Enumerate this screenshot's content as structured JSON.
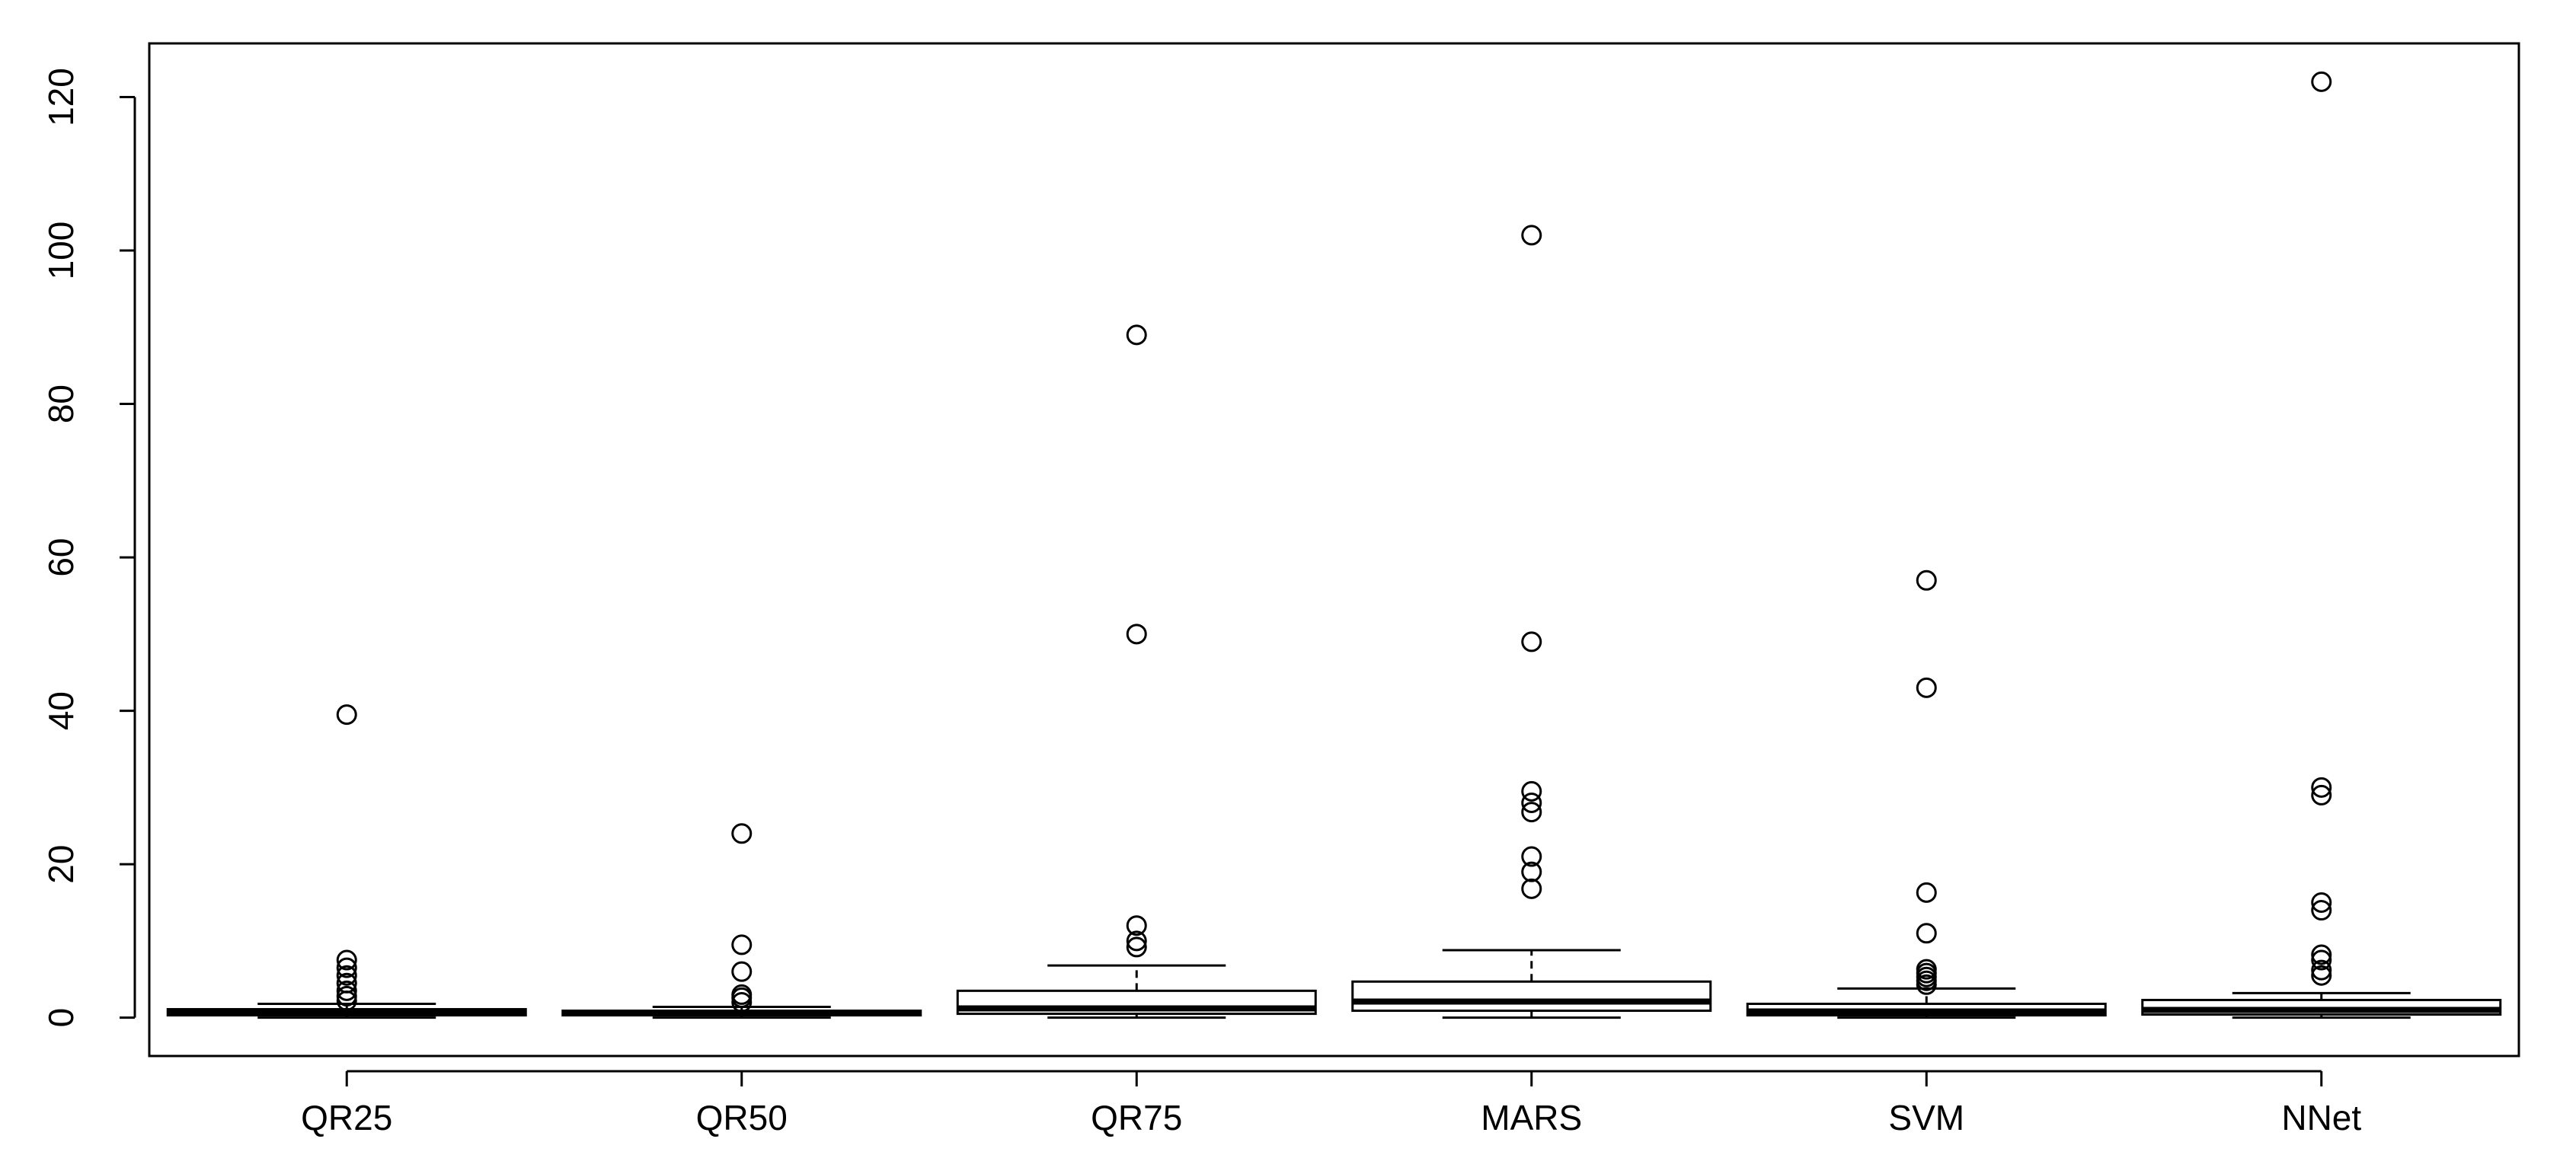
{
  "chart_data": {
    "type": "boxplot",
    "title": "",
    "xlabel": "",
    "ylabel": "",
    "ylim": [
      -5,
      127
    ],
    "y_ticks": [
      0,
      20,
      40,
      60,
      80,
      100,
      120
    ],
    "grid": false,
    "legend": "none",
    "colors": {
      "stroke": "#000000",
      "box_fill": "#ffffff",
      "background": "#ffffff"
    },
    "categories": [
      "QR25",
      "QR50",
      "QR75",
      "MARS",
      "SVM",
      "NNet"
    ],
    "series": [
      {
        "category": "QR25",
        "whisker_low": 0.0,
        "q1": 0.3,
        "median": 0.7,
        "q3": 1.1,
        "whisker_high": 1.8,
        "outliers": [
          2.2,
          2.8,
          3.5,
          4.5,
          5.5,
          6.5,
          7.5,
          39.5
        ]
      },
      {
        "category": "QR50",
        "whisker_low": 0.0,
        "q1": 0.3,
        "median": 0.6,
        "q3": 0.9,
        "whisker_high": 1.4,
        "outliers": [
          2.0,
          2.6,
          3.0,
          6.0,
          9.5,
          24.0
        ]
      },
      {
        "category": "QR75",
        "whisker_low": 0.0,
        "q1": 0.5,
        "median": 1.2,
        "q3": 3.5,
        "whisker_high": 6.8,
        "outliers": [
          9.2,
          10.0,
          12.0,
          50.0,
          89.0
        ]
      },
      {
        "category": "MARS",
        "whisker_low": 0.0,
        "q1": 0.9,
        "median": 2.1,
        "q3": 4.7,
        "whisker_high": 8.8,
        "outliers": [
          16.8,
          19.0,
          21.0,
          26.8,
          28.0,
          29.5,
          49.0,
          102.0
        ]
      },
      {
        "category": "SVM",
        "whisker_low": 0.0,
        "q1": 0.3,
        "median": 0.8,
        "q3": 1.8,
        "whisker_high": 3.8,
        "outliers": [
          4.3,
          4.8,
          5.3,
          5.8,
          6.3,
          11.0,
          16.3,
          43.0,
          57.0
        ]
      },
      {
        "category": "NNet",
        "whisker_low": 0.0,
        "q1": 0.4,
        "median": 1.0,
        "q3": 2.3,
        "whisker_high": 3.2,
        "outliers": [
          5.5,
          6.2,
          7.5,
          8.2,
          14.0,
          15.0,
          29.0,
          30.0,
          122.0
        ]
      }
    ]
  }
}
